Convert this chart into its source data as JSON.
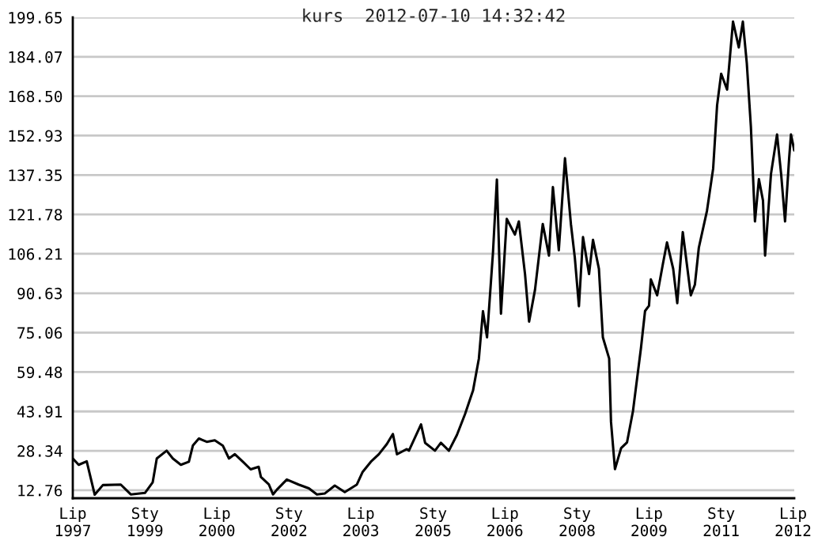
{
  "chart_data": {
    "type": "line",
    "title": "kurs  2012-07-10 14:32:42",
    "x": [
      "1997-07-01",
      "1997-08-15",
      "1997-10-15",
      "1997-12-15",
      "1998-02-15",
      "1998-07-01",
      "1998-09-15",
      "1999-01-01",
      "1999-03-01",
      "1999-04-01",
      "1999-06-15",
      "1999-08-01",
      "1999-10-01",
      "1999-12-01",
      "2000-01-01",
      "2000-02-15",
      "2000-04-15",
      "2000-06-15",
      "2000-08-15",
      "2000-10-01",
      "2000-11-15",
      "2001-01-15",
      "2001-03-15",
      "2001-05-15",
      "2001-06-01",
      "2001-08-01",
      "2001-09-01",
      "2001-10-01",
      "2001-12-15",
      "2002-03-15",
      "2002-06-01",
      "2002-08-01",
      "2002-10-01",
      "2002-12-15",
      "2003-03-01",
      "2003-06-01",
      "2003-07-15",
      "2003-09-15",
      "2003-11-15",
      "2004-01-15",
      "2004-03-01",
      "2004-04-01",
      "2004-06-15",
      "2004-07-01",
      "2004-10-01",
      "2004-11-01",
      "2005-01-15",
      "2005-03-01",
      "2005-05-01",
      "2005-07-01",
      "2005-09-01",
      "2005-11-01",
      "2005-12-15",
      "2006-01-15",
      "2006-02-15",
      "2006-04-01",
      "2006-05-01",
      "2006-06-01",
      "2006-07-15",
      "2006-09-15",
      "2006-10-15",
      "2006-12-01",
      "2007-01-01",
      "2007-02-15",
      "2007-04-15",
      "2007-06-01",
      "2007-07-01",
      "2007-08-15",
      "2007-10-01",
      "2007-11-15",
      "2007-12-15",
      "2008-01-15",
      "2008-02-15",
      "2008-04-01",
      "2008-05-01",
      "2008-06-15",
      "2008-07-15",
      "2008-09-01",
      "2008-09-15",
      "2008-10-15",
      "2008-12-01",
      "2009-01-15",
      "2009-03-01",
      "2009-05-01",
      "2009-06-01",
      "2009-07-01",
      "2009-07-15",
      "2009-09-01",
      "2009-10-15",
      "2009-11-15",
      "2010-01-01",
      "2010-02-01",
      "2010-03-15",
      "2010-05-15",
      "2010-06-15",
      "2010-07-15",
      "2010-09-15",
      "2010-11-01",
      "2010-12-01",
      "2011-01-01",
      "2011-02-15",
      "2011-04-01",
      "2011-05-15",
      "2011-06-15",
      "2011-07-15",
      "2011-08-15",
      "2011-09-15",
      "2011-10-15",
      "2011-11-15",
      "2011-12-01",
      "2012-01-15",
      "2012-03-01",
      "2012-04-01",
      "2012-05-01",
      "2012-06-01",
      "2012-06-15",
      "2012-07-10"
    ],
    "series": [
      {
        "color": "#000000",
        "values": [
          25.3,
          22.8,
          24.2,
          11,
          14.8,
          15,
          11.1,
          11.7,
          15.9,
          25.3,
          28.4,
          25.3,
          22.8,
          24,
          30.5,
          33.2,
          31.9,
          32.5,
          30.4,
          25.3,
          27,
          24,
          21,
          22,
          18,
          15,
          11.1,
          13,
          17,
          15,
          13.5,
          11.1,
          11.5,
          14.6,
          12,
          15,
          20,
          24,
          27,
          31,
          35,
          27,
          29,
          28.4,
          38.8,
          31.5,
          28.4,
          31.5,
          28.4,
          34.6,
          42.9,
          52.3,
          64.8,
          83.5,
          73.2,
          106.5,
          135.6,
          82.5,
          120,
          113.8,
          119,
          98.2,
          79.4,
          92,
          118,
          105.5,
          132.6,
          107.6,
          144,
          118,
          104.6,
          85.5,
          112.8,
          98.2,
          111.7,
          100.3,
          73.2,
          64.8,
          39.8,
          21.1,
          29.4,
          31.7,
          44,
          69,
          83.6,
          85.7,
          96.1,
          89.8,
          102.3,
          110.7,
          100.3,
          86.7,
          114.8,
          89.8,
          94,
          108.6,
          123.2,
          139.9,
          164.9,
          177.4,
          171.1,
          198,
          187.8,
          198,
          181.5,
          156.5,
          119,
          135.7,
          127.3,
          105.5,
          137.8,
          153.4,
          137.8,
          119,
          144,
          153.4,
          147.1
        ]
      }
    ],
    "xlim": [
      "1997-07-01",
      "2012-07-10"
    ],
    "xticks": [
      {
        "value": "1997-07-01",
        "label": "Lip\n1997"
      },
      {
        "value": "1999-01-01",
        "label": "Sty\n1999"
      },
      {
        "value": "2000-07-01",
        "label": "Lip\n2000"
      },
      {
        "value": "2002-01-01",
        "label": "Sty\n2002"
      },
      {
        "value": "2003-07-01",
        "label": "Lip\n2003"
      },
      {
        "value": "2005-01-01",
        "label": "Sty\n2005"
      },
      {
        "value": "2006-07-01",
        "label": "Lip\n2006"
      },
      {
        "value": "2008-01-01",
        "label": "Sty\n2008"
      },
      {
        "value": "2009-07-01",
        "label": "Lip\n2009"
      },
      {
        "value": "2011-01-01",
        "label": "Sty\n2011"
      },
      {
        "value": "2012-07-01",
        "label": "Lip\n2012"
      }
    ],
    "ylim": [
      9.6,
      199.65
    ],
    "yticks": [
      12.76,
      28.34,
      43.91,
      59.48,
      75.06,
      90.63,
      106.21,
      121.78,
      137.35,
      152.93,
      {
        "value": 168.5,
        "label": "168.50"
      },
      184.07,
      199.65
    ],
    "grid": "y",
    "legend": false,
    "line_style": "solid",
    "marker": "none"
  }
}
